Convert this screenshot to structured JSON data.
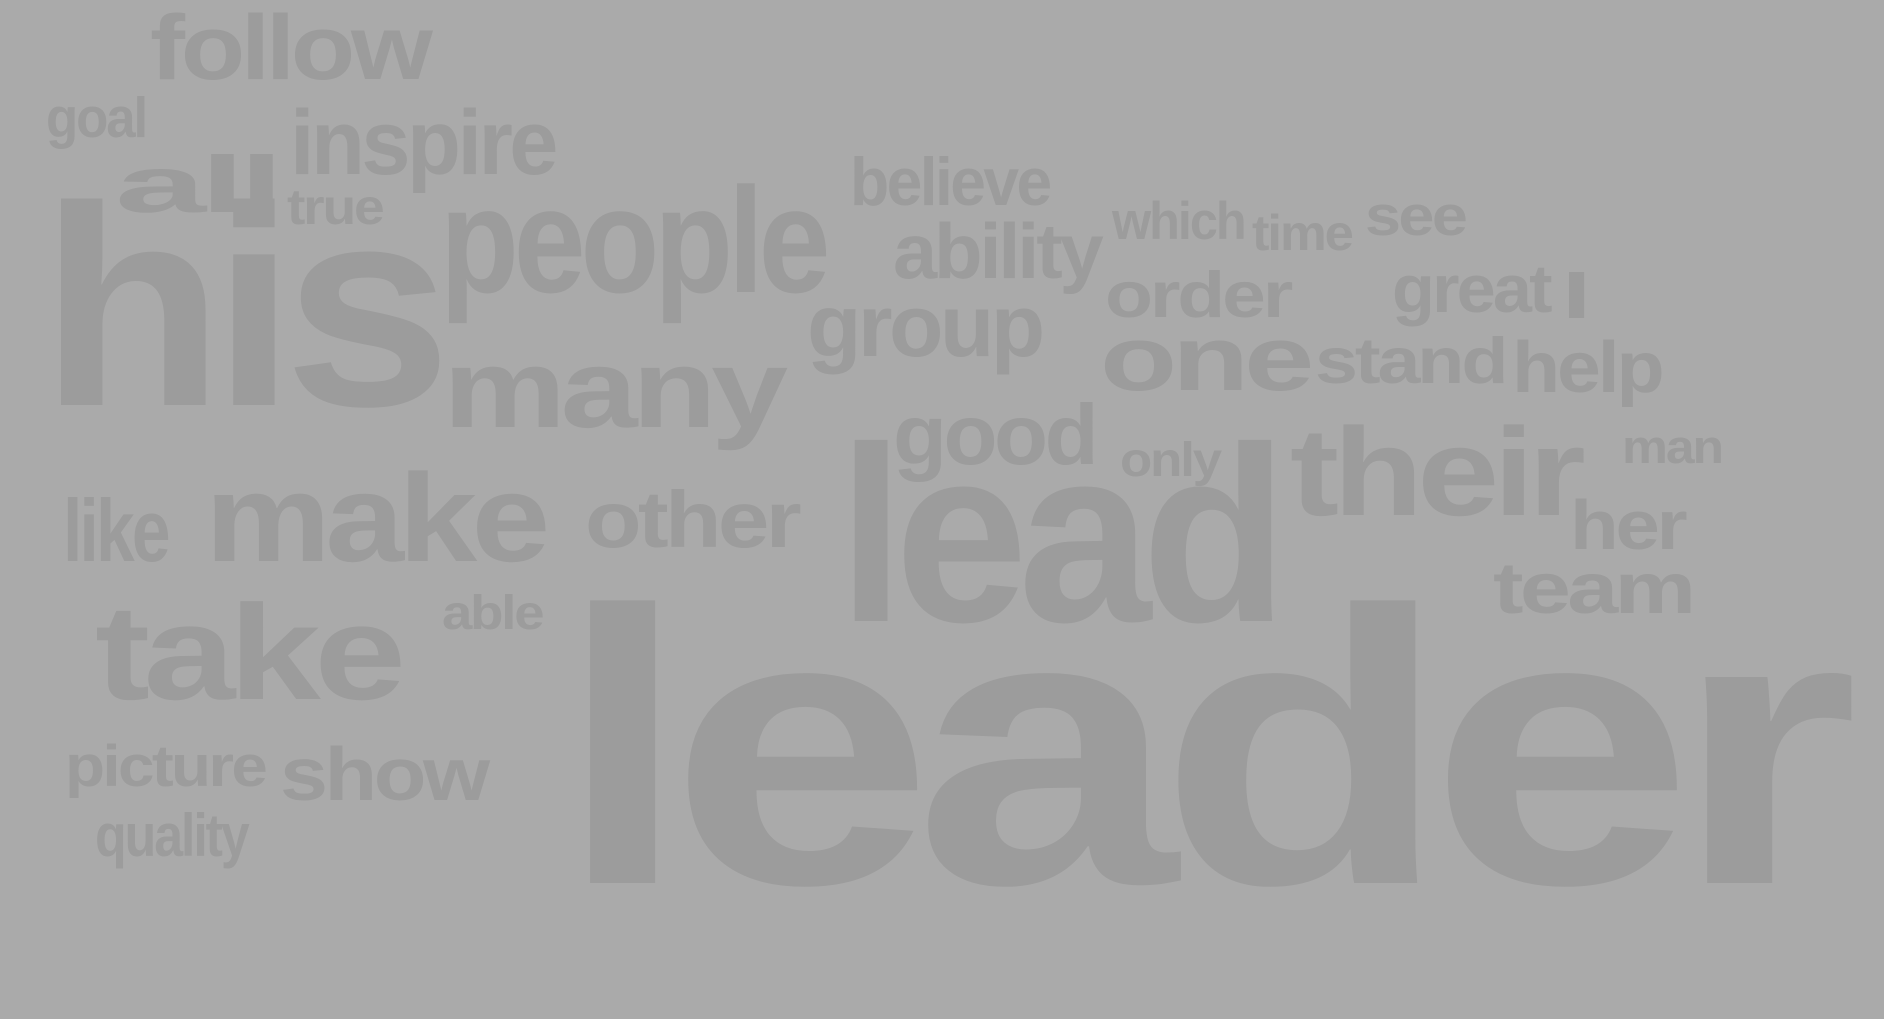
{
  "cloud": {
    "word_color": "#9c9c9c",
    "background_color": "#aaaaaa",
    "words": [
      "follow",
      "goal",
      "inspire",
      "all",
      "true",
      "his",
      "people",
      "believe",
      "ability",
      "which",
      "time",
      "see",
      "order",
      "great",
      "I",
      "group",
      "many",
      "one",
      "stand",
      "help",
      "good",
      "only",
      "man",
      "like",
      "make",
      "other",
      "lead",
      "their",
      "her",
      "team",
      "take",
      "able",
      "picture",
      "show",
      "quality",
      "leader"
    ]
  }
}
